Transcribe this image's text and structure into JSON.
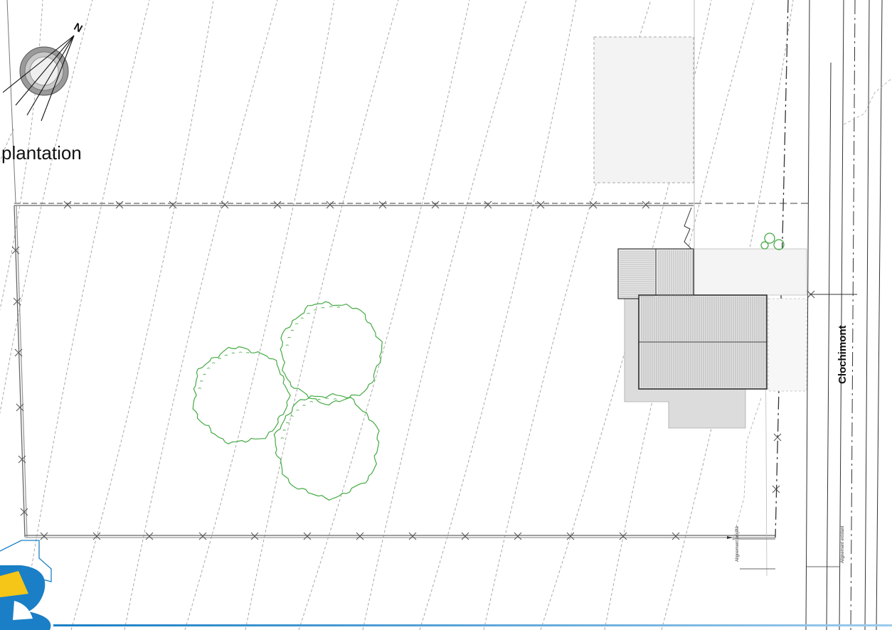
{
  "plan": {
    "title": "plantation",
    "street_name": "Clochimont",
    "north_letter": "N",
    "label_projected_alignment": "Alignement projeté",
    "label_existing_alignment": "Alignement existant",
    "colors": {
      "trees": "#44aa44",
      "contours": "#9a9a9a",
      "fence": "#555555",
      "roof_fill": "#e4e4e4",
      "shadow_fill": "#d8d8d8",
      "logo_blue": "#1a7fc6",
      "logo_yellow": "#f5c518"
    },
    "icons": [
      "north-arrow-icon",
      "company-logo-icon",
      "tree-symbol-icon",
      "shrub-icon",
      "fence-x-marker-icon"
    ]
  }
}
